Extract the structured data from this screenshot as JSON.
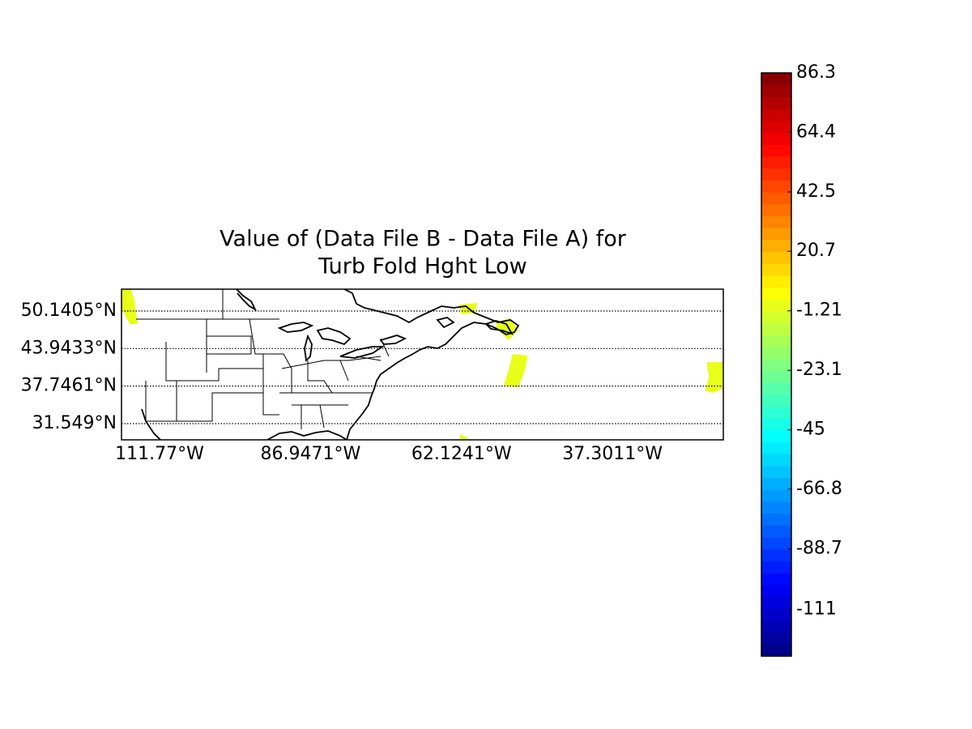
{
  "chart_data": {
    "type": "map",
    "title": [
      "Value of (Data File B - Data File A) for",
      "Turb Fold Hght Low"
    ],
    "xlim": [
      -118.03,
      -19.07
    ],
    "ylim": [
      28.87,
      53.75
    ],
    "xticks": [
      {
        "value": -111.77,
        "label": "111.77°W"
      },
      {
        "value": -86.9471,
        "label": "86.9471°W"
      },
      {
        "value": -62.1241,
        "label": "62.1241°W"
      },
      {
        "value": -37.3011,
        "label": "37.3011°W"
      }
    ],
    "yticks": [
      {
        "value": 50.1405,
        "label": "50.1405°N"
      },
      {
        "value": 43.9433,
        "label": "43.9433°N"
      },
      {
        "value": 37.7461,
        "label": "37.7461°N"
      },
      {
        "value": 31.549,
        "label": "31.549°N"
      }
    ],
    "grid": true,
    "colormap": "jet",
    "clim": [
      -128.2,
      86.3
    ],
    "cticks": [
      86.3,
      64.4,
      42.5,
      20.7,
      -1.21,
      -23.1,
      -45,
      -66.8,
      -88.7,
      -111
    ],
    "regions": [
      {
        "value": 1,
        "polygon": [
          [
            -118.03,
            53.75
          ],
          [
            -116.43,
            53.75
          ],
          [
            -115.9,
            51.74
          ],
          [
            -115.37,
            47.99
          ],
          [
            -116.7,
            47.99
          ],
          [
            -118.03,
            50.67
          ]
        ]
      },
      {
        "value": 1,
        "polygon": [
          [
            -62.53,
            51.21
          ],
          [
            -59.47,
            51.47
          ],
          [
            -60.0,
            49.87
          ],
          [
            -62.13,
            49.6
          ]
        ]
      },
      {
        "value": 1,
        "polygon": [
          [
            -56.54,
            48.26
          ],
          [
            -54.14,
            48.93
          ],
          [
            -52.81,
            46.92
          ],
          [
            -54.41,
            45.31
          ],
          [
            -56.27,
            47.32
          ]
        ]
      },
      {
        "value": 1,
        "polygon": [
          [
            -53.74,
            43.04
          ],
          [
            -51.21,
            42.77
          ],
          [
            -51.74,
            40.23
          ],
          [
            -52.81,
            37.55
          ],
          [
            -55.21,
            37.82
          ],
          [
            -54.41,
            40.23
          ]
        ]
      },
      {
        "value": 1,
        "polygon": [
          [
            -21.8,
            41.7
          ],
          [
            -19.1,
            41.7
          ],
          [
            -19.1,
            37.28
          ],
          [
            -20.87,
            36.61
          ],
          [
            -22.07,
            37.01
          ],
          [
            -21.4,
            39.29
          ]
        ]
      },
      {
        "value": 1,
        "polygon": [
          [
            -62.4,
            29.78
          ],
          [
            -61.06,
            29.25
          ],
          [
            -61.32,
            28.85
          ],
          [
            -62.4,
            28.85
          ]
        ]
      }
    ]
  }
}
